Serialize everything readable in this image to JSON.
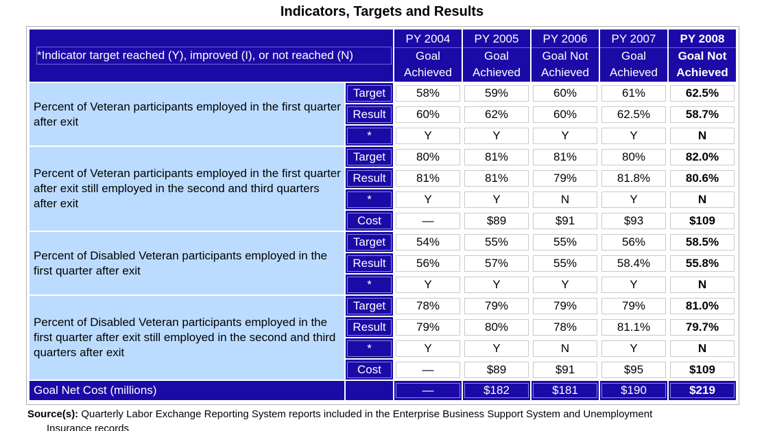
{
  "title": "Indicators, Targets and Results",
  "header": {
    "indicator_note": "*Indicator target reached (Y), improved (I), or not  reached (N)",
    "years": [
      {
        "year": "PY 2004",
        "status": "Goal Achieved"
      },
      {
        "year": "PY 2005",
        "status": "Goal Achieved"
      },
      {
        "year": "PY 2006",
        "status": "Goal Not Achieved"
      },
      {
        "year": "PY 2007",
        "status": "Goal Achieved"
      },
      {
        "year": "PY 2008",
        "status": "Goal Not Achieved"
      }
    ]
  },
  "indicators": [
    {
      "name": "Percent of Veteran participants employed in the first quarter after exit",
      "rows": [
        {
          "label": "Target",
          "values": [
            "58%",
            "59%",
            "60%",
            "61%",
            "62.5%"
          ]
        },
        {
          "label": "Result",
          "values": [
            "60%",
            "62%",
            "60%",
            "62.5%",
            "58.7%"
          ]
        },
        {
          "label": "*",
          "values": [
            "Y",
            "Y",
            "Y",
            "Y",
            "N"
          ]
        }
      ]
    },
    {
      "name": "Percent of Veteran participants employed in the first quarter after exit still employed in the second and third quarters after exit",
      "rows": [
        {
          "label": "Target",
          "values": [
            "80%",
            "81%",
            "81%",
            "80%",
            "82.0%"
          ]
        },
        {
          "label": "Result",
          "values": [
            "81%",
            "81%",
            "79%",
            "81.8%",
            "80.6%"
          ]
        },
        {
          "label": "*",
          "values": [
            "Y",
            "Y",
            "N",
            "Y",
            "N"
          ]
        },
        {
          "label": "Cost",
          "values": [
            "—",
            "$89",
            "$91",
            "$93",
            "$109"
          ]
        }
      ]
    },
    {
      "name": "Percent of Disabled Veteran participants employed in the first quarter after exit",
      "rows": [
        {
          "label": "Target",
          "values": [
            "54%",
            "55%",
            "55%",
            "56%",
            "58.5%"
          ]
        },
        {
          "label": "Result",
          "values": [
            "56%",
            "57%",
            "55%",
            "58.4%",
            "55.8%"
          ]
        },
        {
          "label": "*",
          "values": [
            "Y",
            "Y",
            "Y",
            "Y",
            "N"
          ]
        }
      ]
    },
    {
      "name": "Percent of Disabled Veteran participants employed in the first quarter after exit still employed in the second and third quarters after exit",
      "rows": [
        {
          "label": "Target",
          "values": [
            "78%",
            "79%",
            "79%",
            "79%",
            "81.0%"
          ]
        },
        {
          "label": "Result",
          "values": [
            "79%",
            "80%",
            "78%",
            "81.1%",
            "79.7%"
          ]
        },
        {
          "label": "*",
          "values": [
            "Y",
            "Y",
            "N",
            "Y",
            "N"
          ]
        },
        {
          "label": "Cost",
          "values": [
            "—",
            "$89",
            "$91",
            "$95",
            "$109"
          ]
        }
      ]
    }
  ],
  "footer": {
    "label": "Goal Net Cost (millions)",
    "values": [
      "—",
      "$182",
      "$181",
      "$190",
      "$219"
    ]
  },
  "source": {
    "label": "Source(s):",
    "text": "Quarterly Labor Exchange Reporting System reports included in the Enterprise Business Support System and Unemployment",
    "continuation": "Insurance records"
  },
  "colors": {
    "header_bg": "#1a0aa6",
    "indicator_bg": "#bcdcff",
    "text_on_dark": "#ffffff"
  }
}
